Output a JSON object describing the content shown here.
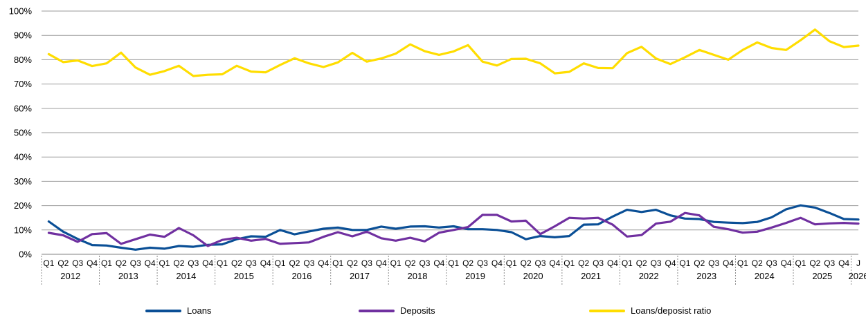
{
  "chart_data": {
    "type": "line",
    "ylim": [
      0,
      100
    ],
    "yticks": [
      "0%",
      "10%",
      "20%",
      "30%",
      "40%",
      "50%",
      "60%",
      "70%",
      "80%",
      "90%",
      "100%"
    ],
    "grid": true,
    "legend_position": "bottom",
    "years": [
      "2012",
      "2013",
      "2014",
      "2015",
      "2016",
      "2017",
      "2018",
      "2019",
      "2020",
      "2021",
      "2022",
      "2023",
      "2024",
      "2025",
      "2026"
    ],
    "quarter_labels": [
      "Q1",
      "Q2",
      "Q3",
      "Q4",
      "Q1",
      "Q2",
      "Q3",
      "Q4",
      "Q1",
      "Q2",
      "Q3",
      "Q4",
      "Q1",
      "Q2",
      "Q3",
      "Q4",
      "Q1",
      "Q2",
      "Q3",
      "Q4",
      "Q1",
      "Q2",
      "Q3",
      "Q4",
      "Q1",
      "Q2",
      "Q3",
      "Q4",
      "Q1",
      "Q2",
      "Q3",
      "Q4",
      "Q1",
      "Q2",
      "Q3",
      "Q4",
      "Q1",
      "Q2",
      "Q3",
      "Q4",
      "Q1",
      "Q2",
      "Q3",
      "Q4",
      "Q1",
      "Q2",
      "Q3",
      "Q4",
      "Q1",
      "Q2",
      "Q3",
      "Q4",
      "Q1",
      "Q2",
      "Q3",
      "Q4",
      "J"
    ],
    "series": [
      {
        "name": "Loans",
        "color": "#0a4f96",
        "values": [
          13.5,
          9.3,
          6.3,
          3.8,
          3.6,
          2.7,
          1.9,
          2.7,
          2.3,
          3.4,
          3.1,
          3.9,
          4.1,
          6.2,
          7.4,
          7.2,
          10.0,
          8.2,
          9.4,
          10.5,
          11.0,
          10.0,
          10.0,
          11.4,
          10.5,
          11.4,
          11.5,
          11.0,
          11.5,
          10.3,
          10.3,
          10.0,
          9.1,
          6.2,
          7.5,
          7.0,
          7.5,
          12.2,
          12.3,
          15.5,
          18.3,
          17.4,
          18.3,
          16.0,
          14.7,
          14.5,
          13.3,
          13.0,
          12.8,
          13.3,
          15.2,
          18.5,
          20.1,
          19.2,
          17.0,
          14.5,
          14.3
        ]
      },
      {
        "name": "Deposits",
        "color": "#7030a0",
        "values": [
          8.8,
          7.8,
          5.1,
          8.3,
          8.7,
          4.3,
          6.2,
          8.1,
          7.2,
          10.8,
          7.8,
          3.4,
          5.9,
          6.8,
          5.6,
          6.3,
          4.3,
          4.6,
          4.9,
          7.2,
          9.1,
          7.4,
          9.3,
          6.6,
          5.6,
          6.8,
          5.3,
          8.9,
          10.0,
          11.2,
          16.2,
          16.2,
          13.5,
          13.8,
          8.3,
          11.5,
          15.0,
          14.7,
          15.0,
          12.2,
          7.3,
          7.9,
          12.6,
          13.4,
          17.0,
          16.0,
          11.3,
          10.3,
          8.9,
          9.3,
          11.0,
          12.9,
          15.0,
          12.3,
          12.7,
          12.9,
          12.6
        ]
      },
      {
        "name": "Loans/deposist ratio",
        "color": "#ffdd00",
        "values": [
          82.3,
          79.0,
          79.7,
          77.4,
          78.5,
          82.9,
          76.8,
          73.8,
          75.3,
          77.5,
          73.3,
          73.8,
          74.0,
          77.5,
          75.1,
          74.8,
          77.8,
          80.6,
          78.5,
          77.0,
          78.9,
          82.8,
          79.2,
          80.5,
          82.5,
          86.3,
          83.5,
          82.0,
          83.4,
          86.0,
          79.2,
          77.6,
          80.3,
          80.4,
          78.5,
          74.4,
          75.0,
          78.5,
          76.6,
          76.5,
          82.7,
          85.3,
          80.5,
          78.2,
          81.0,
          84.0,
          82.0,
          80.0,
          84.0,
          87.1,
          84.8,
          84.0,
          88.0,
          92.4,
          87.6,
          85.2,
          85.8
        ]
      }
    ]
  }
}
